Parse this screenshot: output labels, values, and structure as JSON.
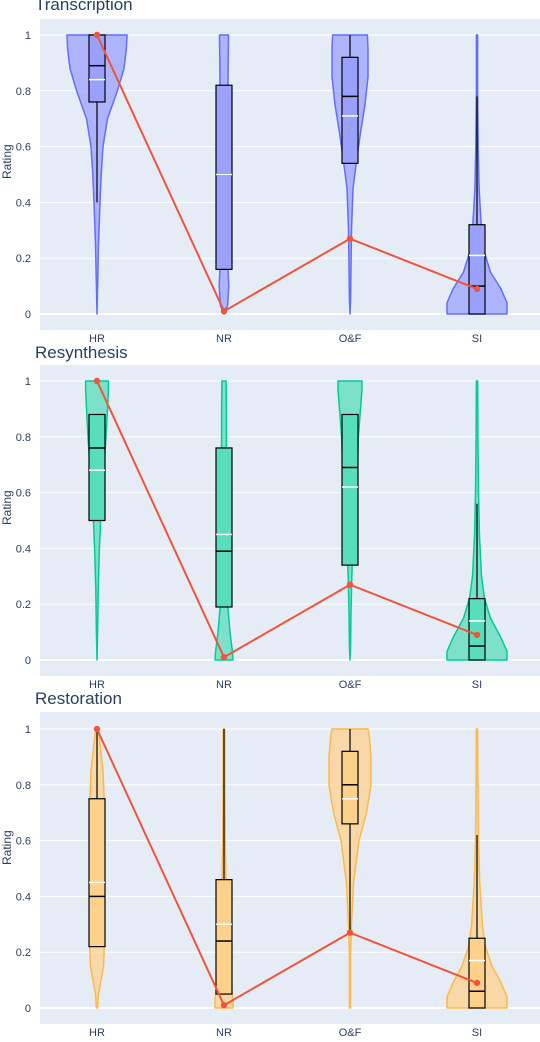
{
  "y_axis_label": "Rating",
  "categories": [
    "HR",
    "NR",
    "O&F",
    "SI"
  ],
  "chart_data": [
    {
      "type": "violin",
      "title": "Transcription",
      "ylabel": "Rating",
      "ylim": [
        -0.05,
        1.05
      ],
      "yticks": [
        "0",
        "0.2",
        "0.4",
        "0.6",
        "0.8",
        "1"
      ],
      "color": "#636efa",
      "categories": [
        "HR",
        "NR",
        "O&F",
        "SI"
      ],
      "boxes": [
        {
          "category": "HR",
          "lowerfence": 0.4,
          "q1": 0.76,
          "median": 0.89,
          "q3": 1.0,
          "upperfence": 1.0,
          "mean": 0.84
        },
        {
          "category": "NR",
          "lowerfence": 0.16,
          "q1": 0.16,
          "median": 0.5,
          "q3": 0.82,
          "upperfence": 0.82,
          "mean": 0.5
        },
        {
          "category": "O&F",
          "lowerfence": 0.54,
          "q1": 0.54,
          "median": 0.78,
          "q3": 0.92,
          "upperfence": 1.0,
          "mean": 0.71
        },
        {
          "category": "SI",
          "lowerfence": 0.0,
          "q1": 0.0,
          "median": 0.1,
          "q3": 0.32,
          "upperfence": 0.78,
          "mean": 0.21
        }
      ],
      "line": {
        "color": "#ef553b",
        "values": [
          1.0,
          0.01,
          0.27,
          0.09
        ]
      }
    },
    {
      "type": "violin",
      "title": "Resynthesis",
      "ylabel": "Rating",
      "ylim": [
        -0.05,
        1.05
      ],
      "yticks": [
        "0",
        "0.2",
        "0.4",
        "0.6",
        "0.8",
        "1"
      ],
      "color": "#00cc96",
      "categories": [
        "HR",
        "NR",
        "O&F",
        "SI"
      ],
      "boxes": [
        {
          "category": "HR",
          "lowerfence": 0.5,
          "q1": 0.5,
          "median": 0.76,
          "q3": 0.88,
          "upperfence": 0.88,
          "mean": 0.68
        },
        {
          "category": "NR",
          "lowerfence": 0.19,
          "q1": 0.19,
          "median": 0.39,
          "q3": 0.76,
          "upperfence": 0.76,
          "mean": 0.45
        },
        {
          "category": "O&F",
          "lowerfence": 0.34,
          "q1": 0.34,
          "median": 0.69,
          "q3": 0.88,
          "upperfence": 0.88,
          "mean": 0.62
        },
        {
          "category": "SI",
          "lowerfence": 0.0,
          "q1": 0.0,
          "median": 0.05,
          "q3": 0.22,
          "upperfence": 0.56,
          "mean": 0.14
        }
      ],
      "line": {
        "color": "#ef553b",
        "values": [
          1.0,
          0.01,
          0.27,
          0.09
        ]
      }
    },
    {
      "type": "violin",
      "title": "Restoration",
      "ylabel": "Rating",
      "ylim": [
        -0.05,
        1.05
      ],
      "yticks": [
        "0",
        "0.2",
        "0.4",
        "0.6",
        "0.8",
        "1"
      ],
      "color": "#feb84d",
      "categories": [
        "HR",
        "NR",
        "O&F",
        "SI"
      ],
      "boxes": [
        {
          "category": "HR",
          "lowerfence": 0.22,
          "q1": 0.22,
          "median": 0.4,
          "q3": 0.75,
          "upperfence": 1.0,
          "mean": 0.45
        },
        {
          "category": "NR",
          "lowerfence": 0.05,
          "q1": 0.05,
          "median": 0.24,
          "q3": 0.46,
          "upperfence": 1.0,
          "mean": 0.3
        },
        {
          "category": "O&F",
          "lowerfence": 0.28,
          "q1": 0.66,
          "median": 0.8,
          "q3": 0.92,
          "upperfence": 1.0,
          "mean": 0.75
        },
        {
          "category": "SI",
          "lowerfence": 0.0,
          "q1": 0.0,
          "median": 0.06,
          "q3": 0.25,
          "upperfence": 0.62,
          "mean": 0.17
        }
      ],
      "line": {
        "color": "#ef553b",
        "values": [
          1.0,
          0.01,
          0.27,
          0.09
        ]
      }
    }
  ]
}
